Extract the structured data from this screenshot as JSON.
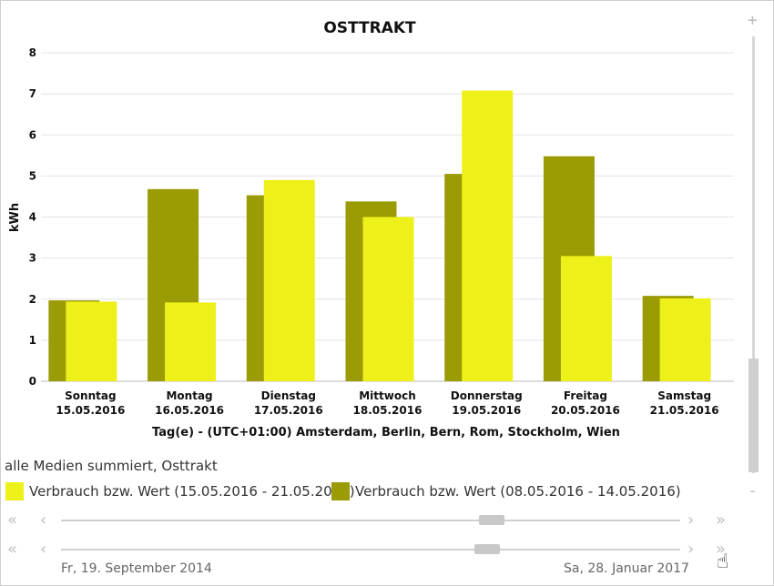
{
  "colors": {
    "current": "#eef01a",
    "previous": "#9b9b06",
    "grid": "#e3e3e3",
    "axis": "#bbbbbb"
  },
  "chart_data": {
    "type": "bar",
    "title": "OSTTRAKT",
    "xlabel": "Tag(e) - (UTC+01:00) Amsterdam, Berlin, Bern, Rom, Stockholm, Wien",
    "ylabel": "kWh",
    "ylim": [
      0,
      8
    ],
    "yticks": [
      "0",
      "1",
      "2",
      "3",
      "4",
      "5",
      "6",
      "7",
      "8"
    ],
    "categories": [
      {
        "day": "Sonntag",
        "date": "15.05.2016"
      },
      {
        "day": "Montag",
        "date": "16.05.2016"
      },
      {
        "day": "Dienstag",
        "date": "17.05.2016"
      },
      {
        "day": "Mittwoch",
        "date": "18.05.2016"
      },
      {
        "day": "Donnerstag",
        "date": "19.05.2016"
      },
      {
        "day": "Freitag",
        "date": "20.05.2016"
      },
      {
        "day": "Samstag",
        "date": "21.05.2016"
      }
    ],
    "series": [
      {
        "name": "Verbrauch bzw. Wert (08.05.2016 - 14.05.2016)",
        "color": "#9b9b06",
        "values": [
          1.97,
          4.68,
          4.53,
          4.38,
          5.05,
          5.48,
          2.08
        ]
      },
      {
        "name": "Verbrauch bzw. Wert (15.05.2016 - 21.05.2016)",
        "color": "#eef01a",
        "values": [
          1.94,
          1.92,
          4.9,
          4.0,
          7.08,
          3.05,
          2.02
        ]
      }
    ],
    "grid": true
  },
  "legend": {
    "caption": "alle Medien summiert, Osttrakt",
    "items": [
      {
        "label": "Verbrauch bzw. Wert (15.05.2016 - 21.05.2016)",
        "color": "#eef01a"
      },
      {
        "label": "Verbrauch bzw. Wert (08.05.2016 - 14.05.2016)",
        "color": "#9b9b06"
      }
    ]
  },
  "navigator": {
    "first": "«",
    "prev": "‹",
    "next": "›",
    "last": "»",
    "start_date": "Fr, 19. September 2014",
    "end_date": "Sa, 28. Januar 2017"
  },
  "vscroll": {
    "plus": "+",
    "minus": "-"
  }
}
